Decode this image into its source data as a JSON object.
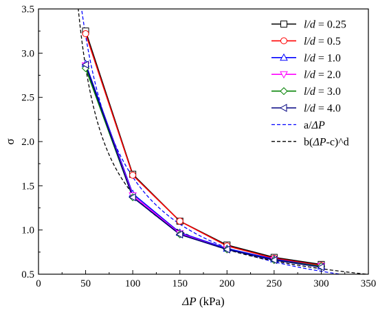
{
  "chart_data": {
    "type": "line",
    "xlabel": "ΔP (kPa)",
    "xlabel_prefix": "ΔP",
    "xlabel_unit": " (kPa)",
    "ylabel": "σ",
    "xlim": [
      0,
      350
    ],
    "ylim": [
      0.5,
      3.5
    ],
    "xticks": [
      0,
      50,
      100,
      150,
      200,
      250,
      300,
      350
    ],
    "yticks": [
      0.5,
      1.0,
      1.5,
      2.0,
      2.5,
      3.0,
      3.5
    ],
    "grid": false,
    "legend_position": "top-right",
    "x": [
      50,
      100,
      150,
      200,
      250,
      300
    ],
    "series": [
      {
        "name": "l/d = 0.25",
        "name_var": "l/d",
        "name_val": " = 0.25",
        "color": "#000000",
        "marker": "square",
        "values": [
          3.25,
          1.63,
          1.1,
          0.83,
          0.69,
          0.61
        ]
      },
      {
        "name": "l/d = 0.5",
        "name_var": "l/d",
        "name_val": " = 0.5",
        "color": "#ff0000",
        "marker": "circle",
        "values": [
          3.22,
          1.62,
          1.1,
          0.82,
          0.68,
          0.6
        ]
      },
      {
        "name": "l/d = 1.0",
        "name_var": "l/d",
        "name_val": " = 1.0",
        "color": "#0000ff",
        "marker": "triangle-up",
        "values": [
          2.88,
          1.41,
          0.97,
          0.79,
          0.67,
          0.59
        ]
      },
      {
        "name": "l/d = 2.0",
        "name_var": "l/d",
        "name_val": " = 2.0",
        "color": "#ff00ff",
        "marker": "triangle-down",
        "values": [
          2.86,
          1.39,
          0.96,
          0.78,
          0.66,
          0.59
        ]
      },
      {
        "name": "l/d = 3.0",
        "name_var": "l/d",
        "name_val": " = 3.0",
        "color": "#008000",
        "marker": "diamond",
        "values": [
          2.83,
          1.37,
          0.95,
          0.78,
          0.66,
          0.59
        ]
      },
      {
        "name": "l/d = 4.0",
        "name_var": "l/d",
        "name_val": " = 4.0",
        "color": "#000080",
        "marker": "triangle-left",
        "values": [
          2.87,
          1.37,
          0.95,
          0.78,
          0.66,
          0.58
        ]
      }
    ],
    "fits": [
      {
        "name": "a/ΔP",
        "prefix": "a/",
        "var": "ΔP",
        "suffix": "",
        "color": "#0000ff",
        "dash": "dashed",
        "type": "reciprocal",
        "a": 160,
        "c": 0,
        "x_range": [
          46,
          320
        ]
      },
      {
        "name": "b(ΔP-c)^d",
        "prefix": "b(",
        "var": "ΔP",
        "suffix": "-c)^d",
        "color": "#000000",
        "dash": "dashed",
        "type": "power",
        "b": 37.6,
        "c": 18,
        "d": -0.745,
        "x_range": [
          40,
          350
        ]
      }
    ]
  }
}
